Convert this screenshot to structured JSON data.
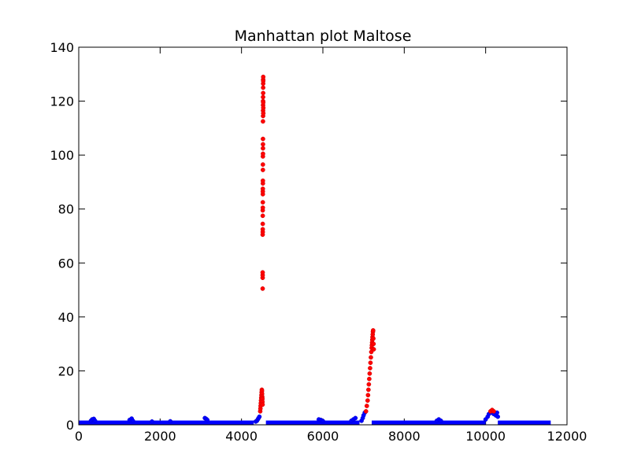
{
  "chart_data": {
    "type": "scatter",
    "title": "Manhattan plot Maltose",
    "xlabel": "",
    "ylabel": "",
    "xlim": [
      0,
      12000
    ],
    "ylim": [
      0,
      140
    ],
    "xticks": [
      "0",
      "2000",
      "4000",
      "6000",
      "8000",
      "10000",
      "12000"
    ],
    "yticks": [
      "0",
      "20",
      "40",
      "60",
      "80",
      "100",
      "120",
      "140"
    ],
    "grid": false,
    "legend": "none",
    "colors": {
      "baseline": "#0000ff",
      "significant": "#ff0000",
      "axes": "#000000"
    },
    "series": [
      {
        "color": "#0000ff",
        "baseline_segments": [
          {
            "x": [
              0,
              4300
            ],
            "ymax": 1.0
          },
          {
            "x": [
              4600,
              6900
            ],
            "ymax": 1.0
          },
          {
            "x": [
              7200,
              10000
            ],
            "ymax": 1.0
          },
          {
            "x": [
              10300,
              11600
            ],
            "ymax": 1.0
          }
        ],
        "x": [
          300,
          330,
          370,
          400,
          1250,
          1300,
          1330,
          1800,
          2250,
          3100,
          3130,
          3160,
          4350,
          4380,
          4400,
          4420,
          4440,
          5900,
          5950,
          6000,
          6700,
          6750,
          6800,
          6950,
          6980,
          7000,
          7030,
          8800,
          8850,
          8900,
          10000,
          10050,
          10080,
          10150,
          10200,
          10250,
          10280,
          10300
        ],
        "y": [
          1.5,
          2.0,
          2.2,
          1.5,
          1.8,
          2.3,
          1.5,
          1.2,
          1.3,
          2.5,
          2.2,
          1.8,
          1.2,
          1.5,
          2.0,
          2.5,
          3.0,
          2.0,
          1.8,
          1.4,
          1.5,
          2.0,
          2.5,
          1.5,
          2.5,
          3.5,
          4.5,
          1.5,
          2.0,
          1.5,
          2.0,
          3.0,
          4.0,
          4.5,
          4.0,
          3.5,
          4.5,
          3.0
        ]
      },
      {
        "color": "#ff0000",
        "x": [
          4460,
          4465,
          4470,
          4475,
          4480,
          4485,
          4490,
          4495,
          4500,
          4502,
          4505,
          4508,
          4510,
          4512,
          4515,
          4518,
          4520,
          4520,
          4520,
          4520,
          4520,
          4522,
          4522,
          4522,
          4522,
          4522,
          4524,
          4524,
          4524,
          4524,
          4524,
          4526,
          4526,
          4526,
          4526,
          4526,
          4528,
          4528,
          4528,
          4528,
          4528,
          4530,
          4530,
          4530,
          4530,
          4530,
          4532,
          4532,
          4532,
          4532,
          4534,
          4534,
          4534,
          4536,
          4536,
          7060,
          7080,
          7100,
          7110,
          7120,
          7130,
          7140,
          7150,
          7160,
          7170,
          7180,
          7190,
          7200,
          7205,
          7210,
          7215,
          7220,
          7225,
          7230,
          7235,
          7240,
          7245,
          7250,
          10120,
          10160,
          10200
        ],
        "y": [
          5,
          6,
          7,
          8,
          9,
          10,
          11,
          12,
          13,
          12.5,
          11.5,
          10.5,
          10,
          9.5,
          8.5,
          7.5,
          50.5,
          54.5,
          55.5,
          56.5,
          70.5,
          71.5,
          72.5,
          74.5,
          77.5,
          79.5,
          80.5,
          82.5,
          85.5,
          86.5,
          87.5,
          89.5,
          90.5,
          94.5,
          96.5,
          99.5,
          100.5,
          102.5,
          104,
          106,
          112.5,
          114.5,
          116.5,
          118.5,
          120,
          121.5,
          123,
          125,
          126.5,
          128,
          129,
          127.5,
          119.5,
          117.5,
          115.5,
          5,
          7,
          9,
          11,
          13,
          15,
          17,
          19,
          21,
          23,
          25,
          27,
          28.5,
          29.5,
          30.5,
          31.5,
          32.5,
          33.5,
          34.5,
          35,
          32,
          30,
          28,
          5,
          5.5,
          5
        ]
      }
    ]
  }
}
